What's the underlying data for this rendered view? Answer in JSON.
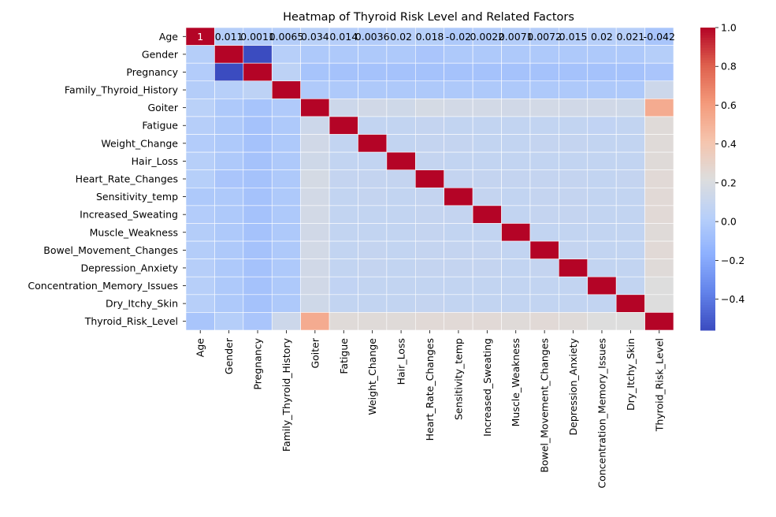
{
  "chart_data": {
    "type": "heatmap",
    "title": "Heatmap of Thyroid Risk Level and Related Factors",
    "xlabel": "",
    "ylabel": "",
    "labels": [
      "Age",
      "Gender",
      "Pregnancy",
      "Family_Thyroid_History",
      "Goiter",
      "Fatigue",
      "Weight_Change",
      "Hair_Loss",
      "Heart_Rate_Changes",
      "Sensitivity_temp",
      "Increased_Sweating",
      "Muscle_Weakness",
      "Bowel_Movement_Changes",
      "Depression_Anxiety",
      "Concentration_Memory_Issues",
      "Dry_Itchy_Skin",
      "Thyroid_Risk_Level"
    ],
    "row0_annotations": [
      "1",
      "0.011",
      "0.0011",
      "0.0065",
      "0.034",
      "0.014",
      "0.0036",
      "0.02",
      "0.018",
      "-0.02",
      "0.0022",
      "0.0071",
      "0.0072",
      "0.015",
      "0.02",
      "0.021",
      "-0.042"
    ],
    "matrix": [
      [
        1,
        0.011,
        0.0011,
        0.0065,
        0.034,
        0.014,
        0.0036,
        0.02,
        0.018,
        -0.02,
        0.0022,
        0.0071,
        0.0072,
        0.015,
        0.02,
        0.021,
        -0.042
      ],
      [
        0.011,
        1,
        -0.56,
        0.02,
        -0.02,
        -0.02,
        -0.02,
        -0.02,
        -0.04,
        -0.02,
        -0.02,
        -0.02,
        -0.02,
        -0.02,
        -0.02,
        -0.02,
        0.01
      ],
      [
        0.0011,
        -0.56,
        1,
        0.05,
        -0.05,
        -0.06,
        -0.06,
        -0.06,
        -0.06,
        -0.06,
        -0.06,
        -0.06,
        -0.06,
        -0.06,
        -0.06,
        -0.06,
        -0.04
      ],
      [
        0.0065,
        0.02,
        0.05,
        1,
        -0.01,
        -0.02,
        -0.02,
        -0.02,
        -0.02,
        -0.02,
        -0.02,
        -0.02,
        -0.02,
        -0.02,
        -0.02,
        -0.02,
        0.13
      ],
      [
        0.034,
        -0.02,
        -0.05,
        -0.01,
        1,
        0.13,
        0.15,
        0.14,
        0.17,
        0.16,
        0.16,
        0.15,
        0.16,
        0.15,
        0.15,
        0.14,
        0.53
      ],
      [
        0.014,
        -0.02,
        -0.06,
        -0.02,
        0.13,
        1,
        0.08,
        0.08,
        0.09,
        0.08,
        0.08,
        0.08,
        0.08,
        0.08,
        0.07,
        0.08,
        0.24
      ],
      [
        0.0036,
        -0.02,
        -0.06,
        -0.02,
        0.15,
        0.08,
        1,
        0.08,
        0.09,
        0.09,
        0.08,
        0.08,
        0.09,
        0.09,
        0.08,
        0.08,
        0.24
      ],
      [
        0.02,
        -0.02,
        -0.06,
        -0.02,
        0.14,
        0.08,
        0.08,
        1,
        0.09,
        0.08,
        0.08,
        0.08,
        0.08,
        0.08,
        0.08,
        0.08,
        0.24
      ],
      [
        0.018,
        -0.04,
        -0.06,
        -0.02,
        0.17,
        0.09,
        0.09,
        0.09,
        1,
        0.09,
        0.09,
        0.09,
        0.09,
        0.09,
        0.08,
        0.09,
        0.25
      ],
      [
        -0.02,
        -0.02,
        -0.06,
        -0.02,
        0.16,
        0.08,
        0.09,
        0.08,
        0.09,
        1,
        0.09,
        0.08,
        0.09,
        0.09,
        0.08,
        0.08,
        0.25
      ],
      [
        0.0022,
        -0.02,
        -0.06,
        -0.02,
        0.16,
        0.08,
        0.08,
        0.08,
        0.09,
        0.09,
        1,
        0.08,
        0.09,
        0.09,
        0.08,
        0.08,
        0.25
      ],
      [
        0.0071,
        -0.02,
        -0.06,
        -0.02,
        0.15,
        0.08,
        0.08,
        0.08,
        0.09,
        0.08,
        0.08,
        1,
        0.08,
        0.08,
        0.08,
        0.08,
        0.24
      ],
      [
        0.0072,
        -0.02,
        -0.06,
        -0.02,
        0.16,
        0.08,
        0.09,
        0.08,
        0.09,
        0.09,
        0.09,
        0.08,
        1,
        0.09,
        0.08,
        0.08,
        0.25
      ],
      [
        0.015,
        -0.02,
        -0.06,
        -0.02,
        0.15,
        0.08,
        0.09,
        0.08,
        0.09,
        0.09,
        0.09,
        0.08,
        0.09,
        1,
        0.08,
        0.08,
        0.24
      ],
      [
        0.02,
        -0.02,
        -0.06,
        -0.02,
        0.15,
        0.07,
        0.08,
        0.08,
        0.08,
        0.08,
        0.08,
        0.08,
        0.08,
        0.08,
        1,
        0.08,
        0.22
      ],
      [
        0.021,
        -0.02,
        -0.06,
        -0.02,
        0.14,
        0.08,
        0.08,
        0.08,
        0.09,
        0.08,
        0.08,
        0.08,
        0.08,
        0.08,
        0.08,
        1,
        0.22
      ],
      [
        -0.042,
        0.01,
        -0.04,
        0.13,
        0.53,
        0.24,
        0.24,
        0.24,
        0.25,
        0.25,
        0.25,
        0.24,
        0.25,
        0.24,
        0.22,
        0.22,
        1
      ]
    ],
    "colorbar": {
      "vmin": -0.56,
      "vmax": 1.0,
      "ticks": [
        1.0,
        0.8,
        0.6,
        0.4,
        0.2,
        0.0,
        -0.2,
        -0.4
      ],
      "tick_labels": [
        "1.0",
        "0.8",
        "0.6",
        "0.4",
        "0.2",
        "0.0",
        "−0.2",
        "−0.4"
      ]
    },
    "colormap": "coolwarm"
  }
}
